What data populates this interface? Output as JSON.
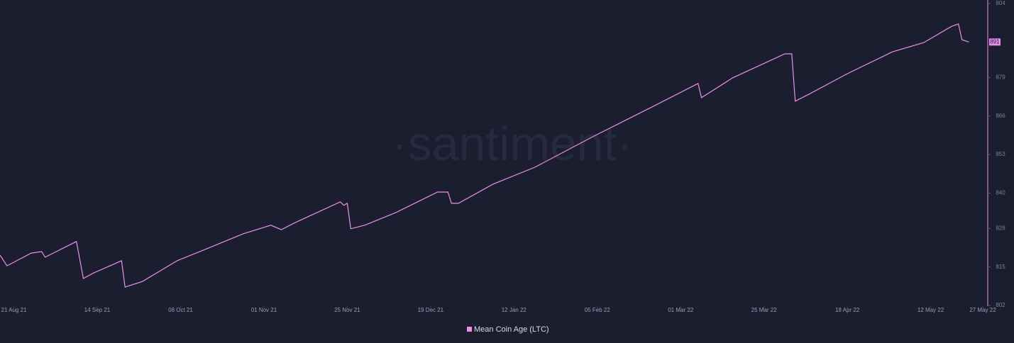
{
  "chart_data": {
    "type": "line",
    "watermark": "·santiment·",
    "last_value_label": "891",
    "x": [
      "2021-08-17",
      "2021-08-19",
      "2021-08-21",
      "2021-08-26",
      "2021-08-29",
      "2021-08-30",
      "2021-09-08",
      "2021-09-10",
      "2021-09-13",
      "2021-09-21",
      "2021-09-22",
      "2021-09-27",
      "2021-10-07",
      "2021-10-15",
      "2021-10-26",
      "2021-11-03",
      "2021-11-06",
      "2021-11-10",
      "2021-11-23",
      "2021-11-24",
      "2021-11-25",
      "2021-11-26",
      "2021-11-30",
      "2021-12-09",
      "2021-12-21",
      "2021-12-24",
      "2021-12-25",
      "2021-12-27",
      "2022-01-06",
      "2022-01-18",
      "2022-02-04",
      "2022-02-22",
      "2022-03-06",
      "2022-03-07",
      "2022-03-16",
      "2022-03-31",
      "2022-04-02",
      "2022-04-03",
      "2022-04-07",
      "2022-04-18",
      "2022-05-01",
      "2022-05-10",
      "2022-05-18",
      "2022-05-20",
      "2022-05-21",
      "2022-05-23"
    ],
    "series": [
      {
        "name": "Mean Coin Age (LTC)",
        "color": "#f08cf0",
        "values": [
          819.0,
          815.4,
          816.6,
          819.7,
          820.2,
          818.3,
          823.6,
          811.1,
          813.0,
          817.1,
          808.2,
          810.1,
          817.1,
          820.9,
          826.2,
          829.1,
          827.6,
          830.0,
          837.0,
          835.8,
          836.5,
          827.9,
          829.1,
          833.4,
          840.3,
          840.3,
          836.5,
          836.5,
          843.0,
          848.7,
          859.2,
          869.8,
          877.0,
          872.2,
          878.9,
          887.0,
          887.0,
          871.0,
          873.4,
          880.3,
          887.7,
          890.8,
          896.3,
          897.1,
          891.8,
          891
        ]
      }
    ],
    "xlim": [
      "2021-08-17",
      "2022-05-27"
    ],
    "xticks": [
      {
        "value": "2021-08-21",
        "label": "21 Aug 21"
      },
      {
        "value": "2021-09-14",
        "label": "14 Sep 21"
      },
      {
        "value": "2021-10-08",
        "label": "08 Oct 21"
      },
      {
        "value": "2021-11-01",
        "label": "01 Nov 21"
      },
      {
        "value": "2021-11-25",
        "label": "25 Nov 21"
      },
      {
        "value": "2021-12-19",
        "label": "19 Dec 21"
      },
      {
        "value": "2022-01-12",
        "label": "12 Jan 22"
      },
      {
        "value": "2022-02-05",
        "label": "05 Feb 22"
      },
      {
        "value": "2022-03-01",
        "label": "01 Mar 22"
      },
      {
        "value": "2022-03-25",
        "label": "25 Mar 22"
      },
      {
        "value": "2022-04-18",
        "label": "18 Apr 22"
      },
      {
        "value": "2022-05-12",
        "label": "12 May 22"
      },
      {
        "value": "2022-05-27",
        "label": "27 May 22"
      }
    ],
    "ylim": [
      802,
      904
    ],
    "yticks": [
      802,
      815,
      828,
      840,
      853,
      866,
      879,
      904
    ]
  }
}
